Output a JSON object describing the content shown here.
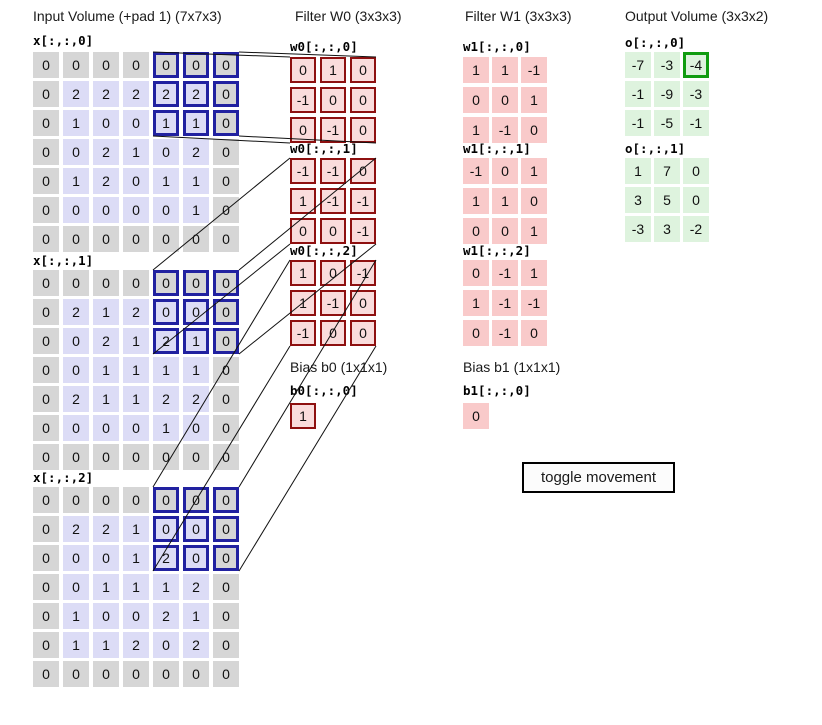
{
  "titles": {
    "input": "Input Volume (+pad 1) (7x7x3)",
    "w0": "Filter W0 (3x3x3)",
    "w1": "Filter W1 (3x3x3)",
    "output": "Output Volume (3x3x2)",
    "bias0": "Bias b0 (1x1x1)",
    "bias1": "Bias b1 (1x1x1)"
  },
  "input": {
    "window": {
      "row_start": 0,
      "row_end": 2,
      "col_start": 4,
      "col_end": 6
    },
    "slices": [
      {
        "label": "x[:,:,0]",
        "rows": [
          [
            0,
            0,
            0,
            0,
            0,
            0,
            0
          ],
          [
            0,
            2,
            2,
            2,
            2,
            2,
            0
          ],
          [
            0,
            1,
            0,
            0,
            1,
            1,
            0
          ],
          [
            0,
            0,
            2,
            1,
            0,
            2,
            0
          ],
          [
            0,
            1,
            2,
            0,
            1,
            1,
            0
          ],
          [
            0,
            0,
            0,
            0,
            0,
            1,
            0
          ],
          [
            0,
            0,
            0,
            0,
            0,
            0,
            0
          ]
        ]
      },
      {
        "label": "x[:,:,1]",
        "rows": [
          [
            0,
            0,
            0,
            0,
            0,
            0,
            0
          ],
          [
            0,
            2,
            1,
            2,
            0,
            0,
            0
          ],
          [
            0,
            0,
            2,
            1,
            2,
            1,
            0
          ],
          [
            0,
            0,
            1,
            1,
            1,
            1,
            0
          ],
          [
            0,
            2,
            1,
            1,
            2,
            2,
            0
          ],
          [
            0,
            0,
            0,
            0,
            1,
            0,
            0
          ],
          [
            0,
            0,
            0,
            0,
            0,
            0,
            0
          ]
        ]
      },
      {
        "label": "x[:,:,2]",
        "rows": [
          [
            0,
            0,
            0,
            0,
            0,
            0,
            0
          ],
          [
            0,
            2,
            2,
            1,
            0,
            0,
            0
          ],
          [
            0,
            0,
            0,
            1,
            2,
            0,
            0
          ],
          [
            0,
            0,
            1,
            1,
            1,
            2,
            0
          ],
          [
            0,
            1,
            0,
            0,
            2,
            1,
            0
          ],
          [
            0,
            1,
            1,
            2,
            0,
            2,
            0
          ],
          [
            0,
            0,
            0,
            0,
            0,
            0,
            0
          ]
        ]
      }
    ]
  },
  "w0": {
    "slices": [
      {
        "label": "w0[:,:,0]",
        "rows": [
          [
            0,
            1,
            0
          ],
          [
            -1,
            0,
            0
          ],
          [
            0,
            -1,
            0
          ]
        ]
      },
      {
        "label": "w0[:,:,1]",
        "rows": [
          [
            -1,
            -1,
            0
          ],
          [
            1,
            -1,
            -1
          ],
          [
            0,
            0,
            -1
          ]
        ]
      },
      {
        "label": "w0[:,:,2]",
        "rows": [
          [
            1,
            0,
            -1
          ],
          [
            1,
            -1,
            0
          ],
          [
            -1,
            0,
            0
          ]
        ]
      }
    ],
    "bias": {
      "label": "b0[:,:,0]",
      "rows": [
        [
          1
        ]
      ]
    }
  },
  "w1": {
    "slices": [
      {
        "label": "w1[:,:,0]",
        "rows": [
          [
            1,
            1,
            -1
          ],
          [
            0,
            0,
            1
          ],
          [
            1,
            -1,
            0
          ]
        ]
      },
      {
        "label": "w1[:,:,1]",
        "rows": [
          [
            -1,
            0,
            1
          ],
          [
            1,
            1,
            0
          ],
          [
            0,
            0,
            1
          ]
        ]
      },
      {
        "label": "w1[:,:,2]",
        "rows": [
          [
            0,
            -1,
            1
          ],
          [
            1,
            -1,
            -1
          ],
          [
            0,
            -1,
            0
          ]
        ]
      }
    ],
    "bias": {
      "label": "b1[:,:,0]",
      "rows": [
        [
          0
        ]
      ]
    }
  },
  "output": {
    "slices": [
      {
        "label": "o[:,:,0]",
        "rows": [
          [
            -7,
            -3,
            -4
          ],
          [
            -1,
            -9,
            -3
          ],
          [
            -1,
            -5,
            -1
          ]
        ],
        "highlight": [
          0,
          2
        ]
      },
      {
        "label": "o[:,:,1]",
        "rows": [
          [
            1,
            7,
            0
          ],
          [
            3,
            5,
            0
          ],
          [
            -3,
            3,
            -2
          ]
        ]
      }
    ]
  },
  "button": {
    "label": "toggle movement"
  },
  "colors": {
    "input_pad": "#d6d6d6",
    "input_interior": "#dcdcf6",
    "window_border": "#2121a0",
    "w0_fill": "#fadcdc",
    "w0_border": "#8e1010",
    "w1_fill": "#f9caca",
    "output_fill": "#def3de",
    "output_highlight": "#109c10",
    "line": "#111111"
  }
}
